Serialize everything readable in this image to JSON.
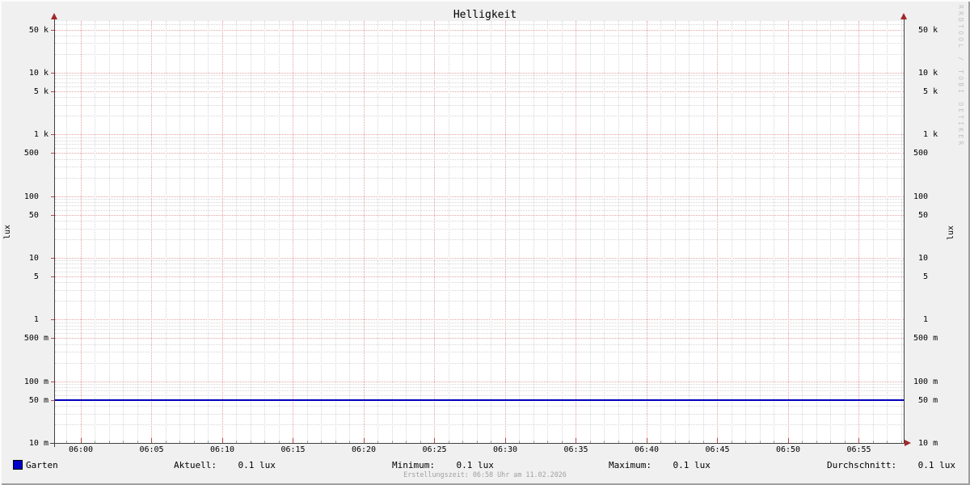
{
  "title": "Helligkeit",
  "vertical_label_left": "lux",
  "vertical_label_right": "lux",
  "watermark": "RRDTOOL / TOBI OETIKER",
  "footer": "Erstellungszeit: 06:58 Uhr am 11.02.2026",
  "legend": {
    "series": [
      {
        "label": "Garten",
        "color": "#0000cc"
      }
    ],
    "stats": [
      {
        "label": "Aktuell:",
        "value": "0.1 lux"
      },
      {
        "label": "Minimum:",
        "value": "0.1 lux"
      },
      {
        "label": "Maximum:",
        "value": "0.1 lux"
      },
      {
        "label": "Durchschnitt:",
        "value": "0.1 lux"
      }
    ]
  },
  "colors": {
    "background": "#f0f0f0",
    "canvas": "#ffffff",
    "major_grid": "#e8a2a2",
    "minor_grid": "#d6d6d6",
    "axis": "#404040",
    "arrow": "#a02828",
    "major_tick": "#b84848",
    "minor_tick": "#a0a0a0",
    "series_line": "#0000bb",
    "watermark_text": "#c2c2c2",
    "footer_text": "#a0a0a0"
  },
  "chart_data": {
    "type": "line",
    "title": "Helligkeit",
    "xlabel": "",
    "ylabel": "lux",
    "y_scale": "logarithmic",
    "ylim_lux": [
      0.01,
      70000
    ],
    "x_range_time": [
      "05:58",
      "06:58"
    ],
    "grid": "red dotted major lines at 1 and 5 per decade and every 5 minutes; gray dotted minor lines at 2,3,4,6,7,8,9 per decade and every minute; grid on",
    "legend_position": "bottom",
    "x_tick_labels": [
      "06:00",
      "06:05",
      "06:10",
      "06:15",
      "06:20",
      "06:25",
      "06:30",
      "06:35",
      "06:40",
      "06:45",
      "06:50",
      "06:55"
    ],
    "y_tick_labels": [
      {
        "value": 50000,
        "label": " 50 k"
      },
      {
        "value": 10000,
        "label": " 10 k"
      },
      {
        "value": 5000,
        "label": "  5 k"
      },
      {
        "value": 1000,
        "label": "  1 k"
      },
      {
        "value": 500,
        "label": "500  "
      },
      {
        "value": 100,
        "label": "100  "
      },
      {
        "value": 50,
        "label": " 50  "
      },
      {
        "value": 10,
        "label": " 10  "
      },
      {
        "value": 5,
        "label": "  5  "
      },
      {
        "value": 1,
        "label": "  1  "
      },
      {
        "value": 0.5,
        "label": "500 m"
      },
      {
        "value": 0.1,
        "label": "100 m"
      },
      {
        "value": 0.05,
        "label": " 50 m"
      },
      {
        "value": 0.01,
        "label": " 10 m"
      }
    ],
    "series": [
      {
        "name": "Garten",
        "color": "#0000cc",
        "shape": "constant horizontal line over entire x range",
        "value_lux": 0.05,
        "printed_stats": {
          "aktuell": "0.1 lux",
          "minimum": "0.1 lux",
          "maximum": "0.1 lux",
          "durchschnitt": "0.1 lux"
        }
      }
    ]
  }
}
